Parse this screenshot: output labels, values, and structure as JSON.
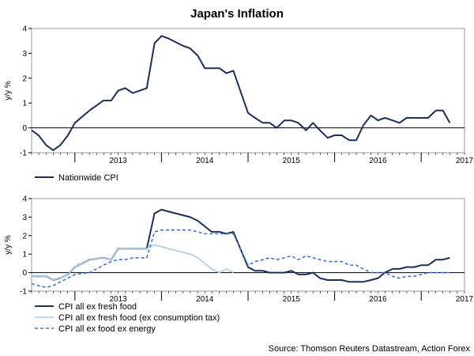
{
  "title": "Japan's Inflation",
  "source": "Source: Thomson Reuters Datastream, Action Forex",
  "colors": {
    "dark": "#1b2f5b",
    "light": "#a8cdea",
    "dashed": "#3d73d8",
    "axis": "#000000"
  },
  "chart_data": [
    {
      "type": "line",
      "title": "",
      "xlabel": "",
      "ylabel": "y/y %",
      "ylim": [
        -1,
        4
      ],
      "yticks": [
        -1,
        0,
        1,
        2,
        3,
        4
      ],
      "xlim": [
        2012.5,
        2017.5
      ],
      "year_ticks": [
        2013,
        2014,
        2015,
        2016,
        2017
      ],
      "grid": true,
      "legend": "bottom-left",
      "series": [
        {
          "name": "Nationwide CPI",
          "color": "dark",
          "dash": false,
          "x": [
            2012.5,
            2012.58,
            2012.67,
            2012.75,
            2012.83,
            2012.92,
            2013.0,
            2013.17,
            2013.33,
            2013.42,
            2013.5,
            2013.58,
            2013.67,
            2013.83,
            2013.92,
            2014.0,
            2014.08,
            2014.25,
            2014.33,
            2014.42,
            2014.5,
            2014.58,
            2014.67,
            2014.75,
            2014.83,
            2015.0,
            2015.08,
            2015.17,
            2015.25,
            2015.33,
            2015.42,
            2015.5,
            2015.58,
            2015.67,
            2015.75,
            2015.83,
            2015.92,
            2016.0,
            2016.08,
            2016.17,
            2016.25,
            2016.33,
            2016.42,
            2016.5,
            2016.58,
            2016.67,
            2016.75,
            2016.83,
            2016.92,
            2017.0,
            2017.08,
            2017.17,
            2017.25,
            2017.33
          ],
          "values": [
            -0.1,
            -0.3,
            -0.7,
            -0.9,
            -0.7,
            -0.3,
            0.2,
            0.7,
            1.1,
            1.1,
            1.5,
            1.6,
            1.4,
            1.6,
            3.4,
            3.7,
            3.6,
            3.3,
            3.2,
            2.9,
            2.4,
            2.4,
            2.4,
            2.2,
            2.3,
            0.6,
            0.4,
            0.2,
            0.2,
            0.0,
            0.3,
            0.3,
            0.2,
            -0.1,
            0.2,
            -0.1,
            -0.4,
            -0.3,
            -0.3,
            -0.5,
            -0.5,
            0.1,
            0.5,
            0.3,
            0.4,
            0.3,
            0.2,
            0.4,
            0.4,
            0.4,
            0.4,
            0.7,
            0.7,
            0.2
          ]
        }
      ]
    },
    {
      "type": "line",
      "title": "",
      "xlabel": "",
      "ylabel": "y/y %",
      "ylim": [
        -1,
        4
      ],
      "yticks": [
        -1,
        0,
        1,
        2,
        3,
        4
      ],
      "xlim": [
        2012.5,
        2017.5
      ],
      "year_ticks": [
        2013,
        2014,
        2015,
        2016,
        2017
      ],
      "grid": true,
      "legend": "bottom-left",
      "series": [
        {
          "name": "CPI all ex fresh food",
          "color": "dark",
          "dash": false,
          "x": [
            2012.5,
            2012.58,
            2012.67,
            2012.75,
            2012.83,
            2012.92,
            2013.0,
            2013.17,
            2013.33,
            2013.42,
            2013.5,
            2013.58,
            2013.67,
            2013.83,
            2013.92,
            2014.0,
            2014.08,
            2014.25,
            2014.33,
            2014.42,
            2014.5,
            2014.58,
            2014.67,
            2014.75,
            2014.83,
            2015.0,
            2015.08,
            2015.17,
            2015.25,
            2015.33,
            2015.42,
            2015.5,
            2015.58,
            2015.67,
            2015.75,
            2015.83,
            2015.92,
            2016.0,
            2016.08,
            2016.17,
            2016.25,
            2016.33,
            2016.42,
            2016.5,
            2016.58,
            2016.67,
            2016.75,
            2016.83,
            2016.92,
            2017.0,
            2017.08,
            2017.17,
            2017.25,
            2017.33
          ],
          "values": [
            -0.2,
            -0.2,
            -0.2,
            -0.4,
            -0.3,
            -0.1,
            0.3,
            0.7,
            0.8,
            0.7,
            1.3,
            1.3,
            1.3,
            1.3,
            3.2,
            3.4,
            3.3,
            3.1,
            3.0,
            2.8,
            2.5,
            2.2,
            2.2,
            2.1,
            2.2,
            0.3,
            0.1,
            0.1,
            0.0,
            0.0,
            0.0,
            0.1,
            -0.1,
            -0.1,
            0.0,
            -0.3,
            -0.4,
            -0.4,
            -0.4,
            -0.5,
            -0.5,
            -0.5,
            -0.4,
            -0.3,
            0.0,
            0.2,
            0.2,
            0.3,
            0.3,
            0.4,
            0.4,
            0.7,
            0.7,
            0.8
          ]
        },
        {
          "name": "CPI all ex fresh food (ex consumption tax)",
          "color": "light",
          "dash": false,
          "x": [
            2012.5,
            2012.58,
            2012.67,
            2012.75,
            2012.83,
            2012.92,
            2013.0,
            2013.17,
            2013.33,
            2013.42,
            2013.5,
            2013.58,
            2013.67,
            2013.83,
            2013.92,
            2014.0,
            2014.08,
            2014.25,
            2014.33,
            2014.42,
            2014.5,
            2014.58,
            2014.67,
            2014.75,
            2014.83
          ],
          "values": [
            -0.2,
            -0.2,
            -0.2,
            -0.4,
            -0.3,
            -0.1,
            0.3,
            0.7,
            0.8,
            0.7,
            1.3,
            1.3,
            1.3,
            1.3,
            1.5,
            1.4,
            1.3,
            1.1,
            1.0,
            0.8,
            0.5,
            0.2,
            0.0,
            0.2,
            0.0
          ]
        },
        {
          "name": "CPI all ex food ex energy",
          "color": "dashed",
          "dash": true,
          "x": [
            2012.5,
            2012.58,
            2012.67,
            2012.75,
            2012.83,
            2012.92,
            2013.0,
            2013.17,
            2013.33,
            2013.42,
            2013.5,
            2013.58,
            2013.67,
            2013.83,
            2013.92,
            2014.0,
            2014.08,
            2014.25,
            2014.33,
            2014.42,
            2014.5,
            2014.58,
            2014.67,
            2014.75,
            2014.83,
            2015.0,
            2015.08,
            2015.17,
            2015.25,
            2015.33,
            2015.42,
            2015.5,
            2015.58,
            2015.67,
            2015.75,
            2015.83,
            2015.92,
            2016.0,
            2016.08,
            2016.17,
            2016.25,
            2016.33,
            2016.42,
            2016.5,
            2016.58,
            2016.67,
            2016.75,
            2016.83,
            2016.92,
            2017.0,
            2017.08,
            2017.17,
            2017.25,
            2017.33
          ],
          "values": [
            -0.6,
            -0.7,
            -0.8,
            -0.7,
            -0.5,
            -0.3,
            -0.1,
            0.0,
            0.4,
            0.6,
            0.7,
            0.7,
            0.8,
            0.8,
            2.2,
            2.3,
            2.3,
            2.3,
            2.3,
            2.2,
            2.1,
            2.1,
            2.1,
            2.1,
            2.1,
            0.4,
            0.6,
            0.7,
            0.8,
            0.7,
            0.8,
            0.9,
            0.7,
            0.9,
            0.8,
            0.7,
            0.6,
            0.6,
            0.6,
            0.4,
            0.4,
            0.2,
            0.0,
            0.0,
            0.0,
            -0.2,
            -0.3,
            -0.2,
            -0.2,
            -0.1,
            0.0,
            0.0,
            0.0,
            0.0
          ]
        }
      ]
    }
  ]
}
